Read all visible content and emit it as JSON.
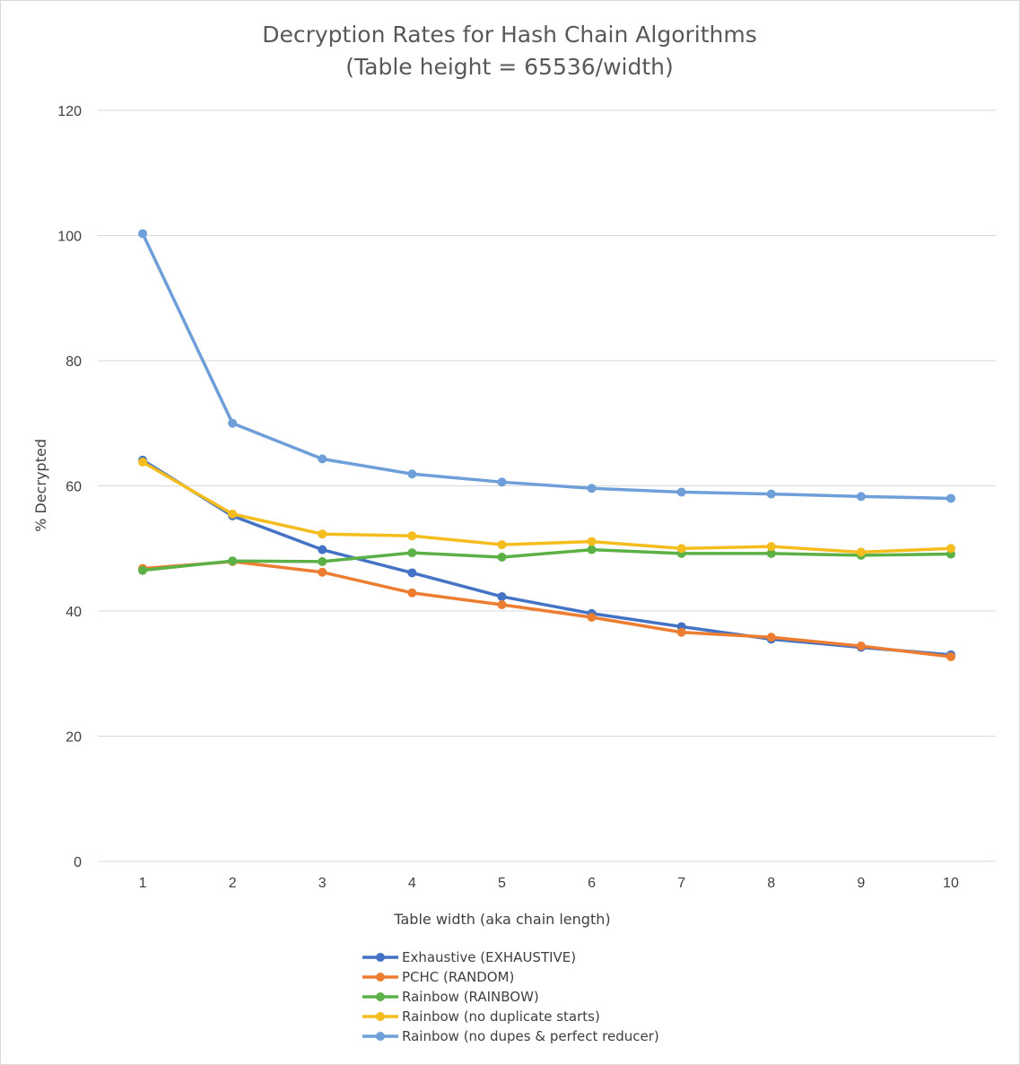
{
  "chart_data": {
    "type": "line",
    "title": "Decryption Rates for Hash Chain Algorithms",
    "subtitle": "(Table height = 65536/width)",
    "xlabel": "Table width  (aka chain length)",
    "ylabel": "% Decrypted",
    "x": [
      1,
      2,
      3,
      4,
      5,
      6,
      7,
      8,
      9,
      10
    ],
    "x_tick_labels": [
      "1",
      "2",
      "3",
      "4",
      "5",
      "6",
      "7",
      "8",
      "9",
      "10"
    ],
    "ylim": [
      0,
      120
    ],
    "y_ticks": [
      0,
      20,
      40,
      60,
      80,
      100,
      120
    ],
    "y_tick_labels": [
      "0",
      "20",
      "40",
      "60",
      "80",
      "100",
      "120"
    ],
    "grid": true,
    "legend_position": "bottom",
    "series": [
      {
        "name": "Exhaustive (EXHAUSTIVE)",
        "color": "#4472C4",
        "values": [
          64.1,
          55.2,
          49.8,
          46.1,
          42.3,
          39.6,
          37.5,
          35.5,
          34.2,
          33.0
        ]
      },
      {
        "name": "PCHC (RANDOM)",
        "color": "#ED7D31",
        "values": [
          46.8,
          47.9,
          46.2,
          42.9,
          41.0,
          39.0,
          36.6,
          35.8,
          34.4,
          32.7
        ]
      },
      {
        "name": "Rainbow (RAINBOW)",
        "color": "#5CB146",
        "values": [
          46.5,
          48.0,
          47.9,
          49.3,
          48.6,
          49.8,
          49.2,
          49.2,
          48.9,
          49.1
        ]
      },
      {
        "name": "Rainbow (no duplicate starts)",
        "color": "#F4BC1C",
        "values": [
          63.8,
          55.5,
          52.3,
          52.0,
          50.6,
          51.1,
          50.0,
          50.3,
          49.4,
          50.0
        ]
      },
      {
        "name": "Rainbow (no dupes & perfect reducer)",
        "color": "#6E9FD9",
        "values": [
          100.3,
          70.0,
          64.3,
          61.9,
          60.6,
          59.6,
          59.0,
          58.7,
          58.3,
          58.0
        ]
      }
    ]
  }
}
